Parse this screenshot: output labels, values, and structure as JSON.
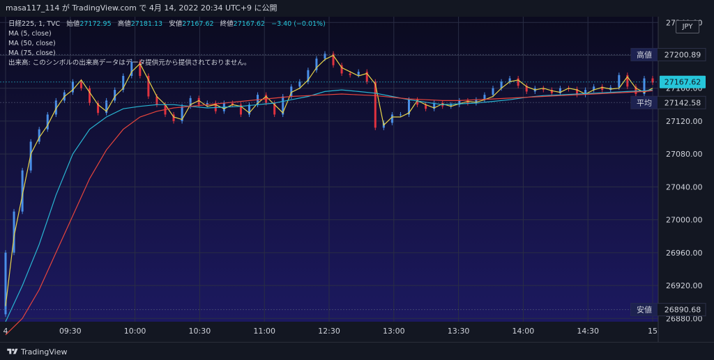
{
  "header": {
    "attribution": "masa117_114 が TradingView.com で 4月 14, 2022 20:34 UTC+9 に公開"
  },
  "legend": {
    "symbol": "日経225, 1, TVC",
    "open_label": "始値",
    "open_value": "27172.95",
    "high_label": "高値",
    "high_value": "27181.13",
    "low_label": "安値",
    "low_value": "27167.62",
    "close_label": "終値",
    "close_value": "27167.62",
    "change": "−3.40 (−0.01%)",
    "ma5": "MA (5, close)",
    "ma50": "MA (50, close)",
    "ma75": "MA (75, close)",
    "volume_note": "出来高: このシンボルの出来高データはデータ提供元から提供されておりません。"
  },
  "currency": "JPY",
  "footer": {
    "brand": "TradingView"
  },
  "colors": {
    "background_top": "#0b0b1f",
    "background_bottom": "#1c1960",
    "up": "#4a8fe8",
    "down": "#e0323f",
    "ma5": "#e8d44a",
    "ma50": "#29b6d3",
    "ma75": "#e8453c",
    "price_label": "#26c6da",
    "axis_text": "#d1d4dc"
  },
  "chart_data": {
    "type": "line",
    "title": "",
    "x_ticks": [
      "4",
      "09:30",
      "10:00",
      "10:30",
      "11:00",
      "12:30",
      "13:00",
      "13:30",
      "14:00",
      "14:30",
      "15"
    ],
    "y_ticks": [
      26880,
      26920,
      26960,
      27000,
      27040,
      27080,
      27120,
      27160,
      27200,
      27240
    ],
    "ylim": [
      26876,
      27247
    ],
    "price_labels": [
      {
        "label": "高値",
        "value": "27200.89",
        "price": 27200.89,
        "style": "box"
      },
      {
        "label": "",
        "value": "27167.62",
        "price": 27167.62,
        "style": "current"
      },
      {
        "label": "平均",
        "value": "27142.58",
        "price": 27142.58,
        "style": "box"
      },
      {
        "label": "安値",
        "value": "26890.68",
        "price": 26890.68,
        "style": "box"
      }
    ],
    "series": [
      {
        "name": "MA (5, close)",
        "x": [
          0,
          2,
          4,
          6,
          8,
          10,
          12,
          14,
          16,
          18,
          20,
          22,
          24,
          26,
          28,
          30,
          32,
          34,
          36,
          38,
          40,
          42,
          44,
          46,
          48,
          50,
          52,
          54,
          56,
          58,
          60,
          62,
          64,
          66,
          68,
          70,
          72,
          74,
          76,
          78,
          80,
          82,
          84,
          86,
          88,
          90,
          92,
          94,
          96,
          98,
          100,
          102,
          104,
          106,
          108,
          110,
          112,
          114,
          116,
          118,
          120,
          122,
          124,
          126,
          128,
          130,
          132,
          134,
          136,
          138,
          140,
          142,
          144,
          146,
          148,
          150,
          152,
          154
        ],
        "values": [
          26895,
          26980,
          27030,
          27080,
          27100,
          27115,
          27135,
          27150,
          27158,
          27170,
          27155,
          27140,
          27132,
          27150,
          27160,
          27180,
          27190,
          27170,
          27150,
          27140,
          27125,
          27122,
          27140,
          27145,
          27138,
          27140,
          27135,
          27140,
          27138,
          27130,
          27142,
          27150,
          27140,
          27130,
          27155,
          27160,
          27170,
          27185,
          27195,
          27200,
          27185,
          27180,
          27175,
          27178,
          27165,
          27115,
          27125,
          27125,
          27130,
          27145,
          27140,
          27136,
          27141,
          27138,
          27141,
          27144,
          27143,
          27146,
          27150,
          27160,
          27168,
          27170,
          27162,
          27158,
          27160,
          27157,
          27155,
          27160,
          27158,
          27153,
          27158,
          27161,
          27159,
          27160,
          27174,
          27160,
          27155,
          27160
        ],
        "color": "#e8d44a"
      },
      {
        "name": "MA (50, close)",
        "x": [
          0,
          4,
          8,
          12,
          16,
          20,
          24,
          28,
          32,
          36,
          40,
          44,
          48,
          52,
          56,
          60,
          64,
          68,
          72,
          76,
          80,
          84,
          88,
          92,
          96,
          100,
          104,
          108,
          112,
          116,
          120,
          124,
          128,
          132,
          136,
          140,
          144,
          148,
          152,
          154
        ],
        "values": [
          26876,
          26920,
          26970,
          27030,
          27080,
          27110,
          27125,
          27135,
          27138,
          27140,
          27140,
          27138,
          27136,
          27137,
          27138,
          27140,
          27142,
          27146,
          27150,
          27156,
          27158,
          27156,
          27154,
          27150,
          27146,
          27143,
          27140,
          27141,
          27142,
          27144,
          27146,
          27149,
          27151,
          27152,
          27153,
          27154,
          27155,
          27156,
          27157,
          27158
        ],
        "color": "#29b6d3"
      },
      {
        "name": "MA (75, close)",
        "x": [
          0,
          4,
          8,
          12,
          16,
          20,
          24,
          28,
          32,
          36,
          40,
          44,
          48,
          52,
          56,
          60,
          64,
          68,
          72,
          76,
          80,
          84,
          88,
          92,
          96,
          100,
          104,
          108,
          112,
          116,
          120,
          124,
          128,
          132,
          136,
          140,
          144,
          148,
          152,
          154
        ],
        "values": [
          26860,
          26880,
          26915,
          26960,
          27005,
          27050,
          27085,
          27110,
          27125,
          27132,
          27136,
          27138,
          27140,
          27142,
          27144,
          27146,
          27148,
          27150,
          27151,
          27152,
          27153,
          27152,
          27151,
          27149,
          27147,
          27146,
          27145,
          27145,
          27146,
          27147,
          27148,
          27149,
          27150,
          27151,
          27152,
          27153,
          27154,
          27155,
          27156,
          27157
        ],
        "color": "#e8453c"
      }
    ],
    "candles": {
      "name": "日経225",
      "x": [
        0,
        2,
        4,
        6,
        8,
        10,
        12,
        14,
        16,
        18,
        20,
        22,
        24,
        26,
        28,
        30,
        32,
        34,
        36,
        38,
        40,
        42,
        44,
        46,
        48,
        50,
        52,
        54,
        56,
        58,
        60,
        62,
        64,
        66,
        68,
        70,
        72,
        74,
        76,
        78,
        80,
        82,
        84,
        86,
        88,
        90,
        92,
        94,
        96,
        98,
        100,
        102,
        104,
        106,
        108,
        110,
        112,
        114,
        116,
        118,
        120,
        122,
        124,
        126,
        128,
        130,
        132,
        134,
        136,
        138,
        140,
        142,
        144,
        146,
        148,
        150,
        152,
        154
      ],
      "open": [
        26885,
        26960,
        27010,
        27060,
        27095,
        27110,
        27128,
        27145,
        27155,
        27168,
        27160,
        27142,
        27130,
        27145,
        27158,
        27175,
        27192,
        27175,
        27150,
        27140,
        27128,
        27120,
        27138,
        27148,
        27140,
        27142,
        27132,
        27142,
        27140,
        27128,
        27140,
        27152,
        27142,
        27128,
        27150,
        27162,
        27168,
        27182,
        27196,
        27202,
        27188,
        27178,
        27176,
        27180,
        27168,
        27112,
        27118,
        27128,
        27128,
        27146,
        27140,
        27135,
        27142,
        27138,
        27140,
        27145,
        27142,
        27146,
        27152,
        27160,
        27168,
        27172,
        27163,
        27156,
        27160,
        27158,
        27154,
        27160,
        27159,
        27152,
        27158,
        27162,
        27158,
        27161,
        27176,
        27162,
        27153,
        27172
      ],
      "close": [
        26960,
        27010,
        27060,
        27095,
        27110,
        27128,
        27145,
        27155,
        27168,
        27160,
        27142,
        27130,
        27145,
        27158,
        27175,
        27192,
        27175,
        27150,
        27140,
        27128,
        27120,
        27138,
        27148,
        27140,
        27142,
        27132,
        27142,
        27140,
        27128,
        27140,
        27152,
        27142,
        27128,
        27150,
        27162,
        27168,
        27182,
        27196,
        27202,
        27188,
        27178,
        27176,
        27180,
        27168,
        27112,
        27118,
        27128,
        27128,
        27146,
        27140,
        27135,
        27142,
        27138,
        27140,
        27145,
        27142,
        27146,
        27152,
        27160,
        27168,
        27172,
        27163,
        27156,
        27160,
        27158,
        27154,
        27160,
        27159,
        27152,
        27158,
        27162,
        27158,
        27161,
        27176,
        27162,
        27153,
        27172,
        27167
      ]
    }
  }
}
